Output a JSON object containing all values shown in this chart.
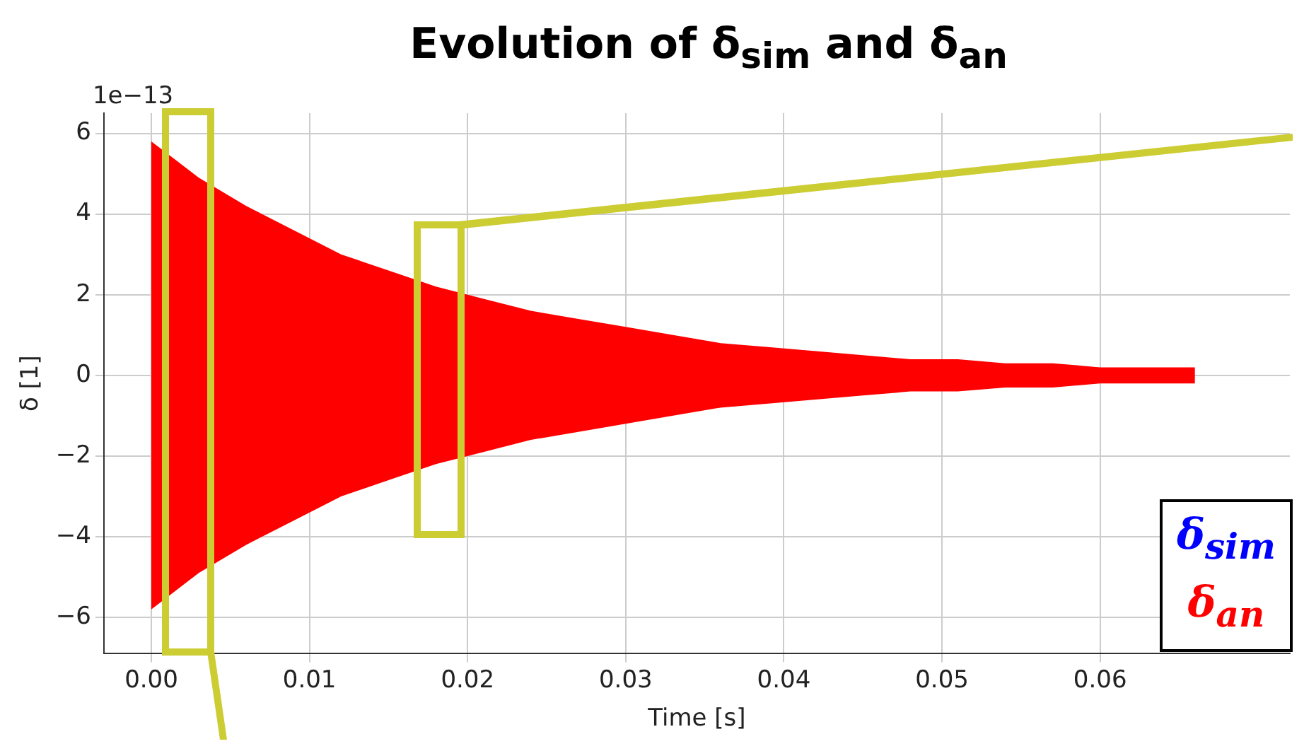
{
  "chart_data": {
    "type": "line",
    "title": "Evolution of δ$_{sim}$ and δ$_{an}$",
    "xlabel": "Time [s]",
    "ylabel": "δ [1]",
    "annotations": [
      "1e−13"
    ],
    "x": [
      0,
      0.003,
      0.006,
      0.009,
      0.012,
      0.015,
      0.018,
      0.021,
      0.024,
      0.027,
      0.03,
      0.033,
      0.036,
      0.039,
      0.042,
      0.045,
      0.048,
      0.051,
      0.054,
      0.057,
      0.06,
      0.063,
      0.066
    ],
    "series": [
      {
        "name": "δ$_{sim}$",
        "color": "#0000ff",
        "values": [
          null,
          null,
          null,
          null,
          null,
          null,
          null,
          null,
          null,
          null,
          null,
          null,
          null,
          null,
          null,
          null,
          null,
          null,
          null,
          null,
          null,
          null,
          null
        ]
      },
      {
        "name": "δ$_{an}$",
        "color": "#ff0000",
        "values": [
          null,
          null,
          null,
          null,
          null,
          null,
          null,
          null,
          null,
          null,
          null,
          null,
          null,
          null,
          null,
          null,
          null,
          null,
          null,
          null,
          null,
          null,
          null
        ],
        "upper": [
          5.8,
          4.9,
          4.2,
          3.6,
          3.0,
          2.6,
          2.2,
          1.9,
          1.6,
          1.4,
          1.2,
          1.0,
          0.8,
          0.7,
          0.6,
          0.5,
          0.4,
          0.4,
          0.3,
          0.3,
          0.2,
          0.2,
          0.2
        ],
        "lower": [
          -5.8,
          -4.9,
          -4.2,
          -3.6,
          -3.0,
          -2.6,
          -2.2,
          -1.9,
          -1.6,
          -1.4,
          -1.2,
          -1.0,
          -0.8,
          -0.7,
          -0.6,
          -0.5,
          -0.4,
          -0.4,
          -0.3,
          -0.3,
          -0.2,
          -0.2,
          -0.2
        ]
      }
    ],
    "xlim": [
      -0.003,
      0.072
    ],
    "ylim": [
      -6.9,
      6.5
    ],
    "xticks": [
      {
        "value": 0,
        "label": "0.00"
      },
      {
        "value": 0.01,
        "label": "0.01"
      },
      {
        "value": 0.02,
        "label": "0.02"
      },
      {
        "value": 0.03,
        "label": "0.03"
      },
      {
        "value": 0.04,
        "label": "0.04"
      },
      {
        "value": 0.05,
        "label": "0.05"
      },
      {
        "value": 0.06,
        "label": "0.06"
      }
    ],
    "yticks": [
      {
        "value": -6,
        "label": "−6"
      },
      {
        "value": -4,
        "label": "−4"
      },
      {
        "value": -2,
        "label": "−2"
      },
      0,
      2,
      4,
      6
    ],
    "grid": true
  }
}
